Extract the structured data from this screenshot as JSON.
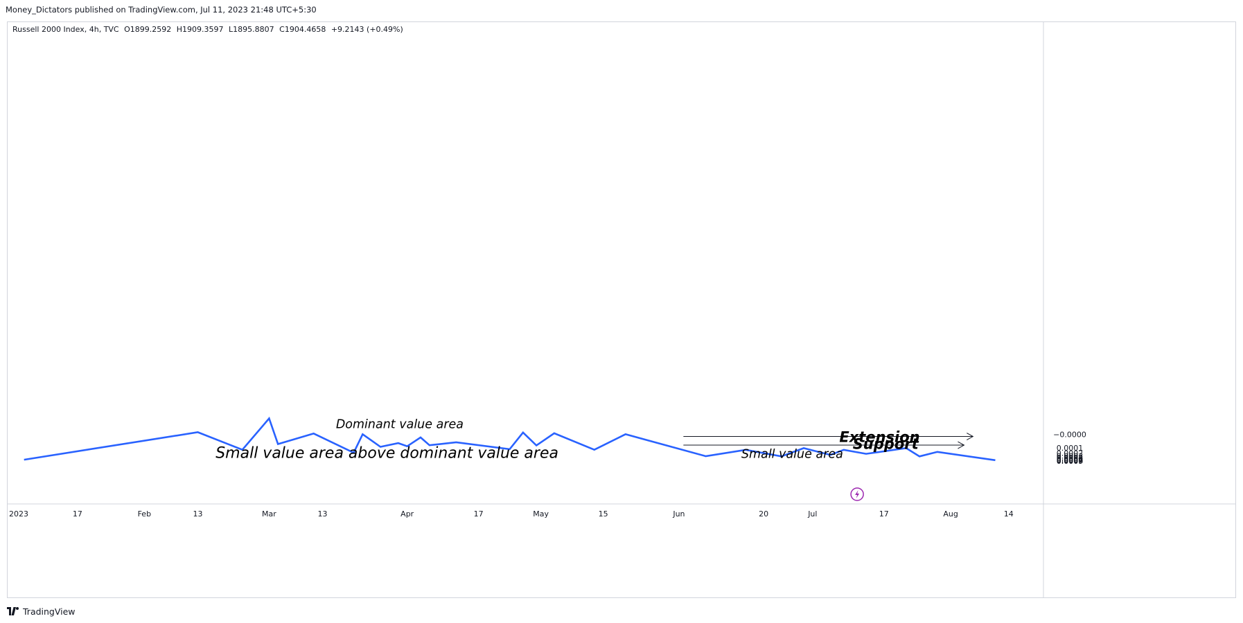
{
  "header": {
    "publisher_line": "Money_Dictators published on TradingView.com, Jul 11, 2023 21:48 UTC+5:30"
  },
  "legend": {
    "symbol": "Russell 2000 Index, 4h, TVC",
    "open": "O1899.2592",
    "high": "H1909.3597",
    "low": "L1895.8807",
    "close": "C1904.4658",
    "change": "+9.2143 (+0.49%)"
  },
  "footer": {
    "brand": "TradingView"
  },
  "chart_data": {
    "type": "line",
    "x_tick_labels": [
      "2023",
      "17",
      "Feb",
      "13",
      "Mar",
      "13",
      "Apr",
      "17",
      "May",
      "15",
      "Jun",
      "20",
      "Jul",
      "17",
      "Aug",
      "14"
    ],
    "y_tick_labels": [
      "0.0009",
      "0.0008",
      "0.0007",
      "0.0006",
      "0.0005",
      "0.0004",
      "0.0003",
      "0.0002",
      "0.0001",
      "−0.0000"
    ],
    "y_ticks": [
      0.0009,
      0.0008,
      0.0007,
      0.0006,
      0.0005,
      0.0004,
      0.0003,
      0.0002,
      0.0001,
      0.0
    ],
    "series": [
      {
        "color": "#2962ff",
        "points": [
          [
            "2023-01-05",
            0.00063
          ],
          [
            "2023-02-13",
            -8e-06
          ],
          [
            "2023-02-23",
            0.000128
          ],
          [
            "2023-03-01",
            -4.5e-05
          ],
          [
            "2023-03-03",
            6e-05
          ],
          [
            "2023-03-11",
            -3e-06
          ],
          [
            "2023-03-20",
            0.00019
          ],
          [
            "2023-03-22",
            0.0
          ],
          [
            "2023-03-26",
            8.8e-05
          ],
          [
            "2023-03-30",
            5.2e-05
          ],
          [
            "2023-04-01",
            8.2e-05
          ],
          [
            "2023-04-04",
            1.5e-05
          ],
          [
            "2023-04-06",
            7.1e-05
          ],
          [
            "2023-04-12",
            4.5e-05
          ],
          [
            "2023-04-24",
            0.00012
          ],
          [
            "2023-04-27",
            -7e-06
          ],
          [
            "2023-04-30",
            7.3e-05
          ],
          [
            "2023-05-04",
            -4e-06
          ],
          [
            "2023-05-13",
            0.000129
          ],
          [
            "2023-05-20",
            0.0
          ],
          [
            "2023-06-07",
            0.000315
          ],
          [
            "2023-06-16",
            0.00013
          ],
          [
            "2023-06-24",
            0.000325
          ],
          [
            "2023-06-29",
            0.000105
          ],
          [
            "2023-07-05",
            0.00026
          ],
          [
            "2023-07-08",
            0.00013
          ],
          [
            "2023-07-13",
            0.00022
          ],
          [
            "2023-07-22",
            0.000105
          ],
          [
            "2023-07-25",
            0.000325
          ],
          [
            "2023-07-29",
            0.00017
          ],
          [
            "2023-08-11",
            0.00072
          ]
        ]
      }
    ],
    "shaded_boxes": [
      {
        "x1": "2023-02-10",
        "x2": "2023-05-31",
        "y_low": 0.0,
        "y_high": 0.000132,
        "fill": "#f1f1f2"
      },
      {
        "x1": "2023-05-31",
        "x2": "2023-08-07",
        "y_low": 0.000135,
        "y_high": 0.000315,
        "fill": "#f1f1f2"
      },
      {
        "x1": "2023-05-31",
        "x2": "2023-08-07",
        "y_low": 0.0,
        "y_high": 0.000132,
        "fill": "#ffffff"
      }
    ],
    "arrows": [
      {
        "x1": "2023-06-02",
        "x2": "2023-08-04",
        "y": 7e-05
      },
      {
        "x1": "2023-06-02",
        "x2": "2023-08-06",
        "y": 1e-05
      }
    ],
    "annotations": [
      {
        "text": "Small value area above dominant value area",
        "x": "2023-02-17",
        "y": 0.00042,
        "color": "#000000",
        "size": "large"
      },
      {
        "text": "Small value area",
        "x": "2023-06-15",
        "y": 0.00042,
        "color": "#000000",
        "size": "medium"
      },
      {
        "text": "Support",
        "x": "2023-07-10",
        "y": 0.000117,
        "color": "#000000",
        "size": "medium"
      },
      {
        "text": "Extension",
        "x": "2023-07-07",
        "y": 4.3e-05,
        "color": "#089981",
        "size": "medium"
      },
      {
        "text": "Dominant value area",
        "x": "2023-03-16",
        "y": -2.2e-05,
        "color": "#000000",
        "size": "medium"
      }
    ],
    "grid": false
  }
}
